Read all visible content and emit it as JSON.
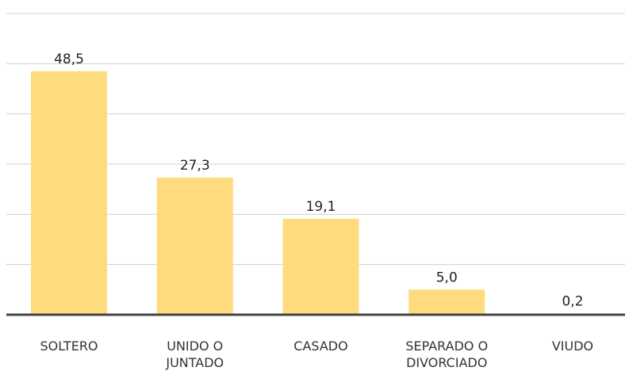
{
  "chart_data": {
    "type": "bar",
    "categories": [
      "SOLTERO",
      "UNIDO O JUNTADO",
      "CASADO",
      "SEPARADO O DIVORCIADO",
      "VIUDO"
    ],
    "values": [
      48.5,
      27.3,
      19.1,
      5.0,
      0.2
    ],
    "value_labels": [
      "48,5",
      "27,3",
      "19,1",
      "5,0",
      "0,2"
    ],
    "color": "#fedc7d",
    "ylim": [
      0,
      60
    ],
    "yticks": [
      0,
      10,
      20,
      30,
      40,
      50,
      60
    ],
    "grid": true
  }
}
